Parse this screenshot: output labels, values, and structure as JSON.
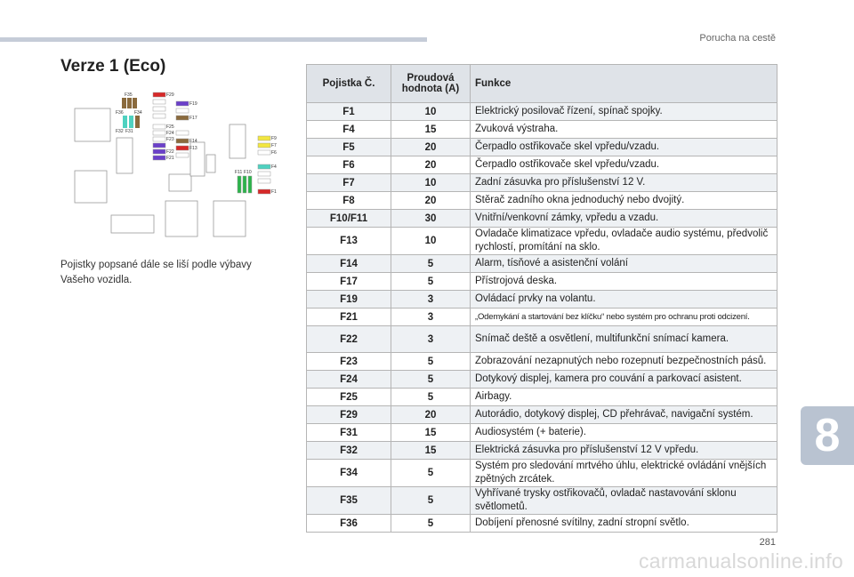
{
  "header": {
    "chapter_title": "Porucha na cestě"
  },
  "section_title": "Verze 1 (Eco)",
  "intro_text": "Pojistky popsané dále se liší podle výbavy Vašeho vozidla.",
  "diagram": {
    "labels": [
      "F35",
      "F36",
      "F34",
      "F32",
      "F31",
      "F29",
      "F19",
      "F17",
      "F25",
      "F24",
      "F23",
      "F22",
      "F21",
      "F14",
      "F13",
      "F9",
      "F7",
      "F6",
      "F4",
      "F1",
      "F11",
      "F10"
    ]
  },
  "table": {
    "headers": [
      "Pojistka Č.",
      "Proudová hodnota (A)",
      "Funkce"
    ],
    "rows": [
      {
        "fuse": "F1",
        "amp": "10",
        "func": "Elektrický posilovač řízení, spínač spojky."
      },
      {
        "fuse": "F4",
        "amp": "15",
        "func": "Zvuková výstraha."
      },
      {
        "fuse": "F5",
        "amp": "20",
        "func": "Čerpadlo ostřikovače skel vpředu/vzadu."
      },
      {
        "fuse": "F6",
        "amp": "20",
        "func": "Čerpadlo ostřikovače skel vpředu/vzadu."
      },
      {
        "fuse": "F7",
        "amp": "10",
        "func": "Zadní zásuvka pro příslušenství 12 V."
      },
      {
        "fuse": "F8",
        "amp": "20",
        "func": "Stěrač zadního okna jednoduchý nebo dvojitý."
      },
      {
        "fuse": "F10/F11",
        "amp": "30",
        "func": "Vnitřní/venkovní zámky, vpředu a vzadu."
      },
      {
        "fuse": "F13",
        "amp": "10",
        "func": "Ovladače klimatizace vpředu, ovladače audio systému, předvolič rychlostí, promítání na sklo."
      },
      {
        "fuse": "F14",
        "amp": "5",
        "func": "Alarm, tísňové a asistenční volání"
      },
      {
        "fuse": "F17",
        "amp": "5",
        "func": "Přístrojová deska."
      },
      {
        "fuse": "F19",
        "amp": "3",
        "func": "Ovládací prvky na volantu."
      },
      {
        "fuse": "F21",
        "amp": "3",
        "func": "„Odemykání a startování bez klíčku“ nebo systém pro ochranu proti odcizení."
      },
      {
        "fuse": "F22",
        "amp": "3",
        "func": "Snímač deště a osvětlení, multifunkční snímací kamera."
      },
      {
        "fuse": "F23",
        "amp": "5",
        "func": "Zobrazování nezapnutých nebo rozepnutí bezpečnostních pásů."
      },
      {
        "fuse": "F24",
        "amp": "5",
        "func": "Dotykový displej, kamera pro couvání a parkovací asistent."
      },
      {
        "fuse": "F25",
        "amp": "5",
        "func": "Airbagy."
      },
      {
        "fuse": "F29",
        "amp": "20",
        "func": "Autorádio, dotykový displej, CD přehrávač, navigační systém."
      },
      {
        "fuse": "F31",
        "amp": "15",
        "func": "Audiosystém (+ baterie)."
      },
      {
        "fuse": "F32",
        "amp": "15",
        "func": "Elektrická zásuvka pro příslušenství 12 V vpředu."
      },
      {
        "fuse": "F34",
        "amp": "5",
        "func": "Systém pro sledování mrtvého úhlu, elektrické ovládání vnějších zpětných zrcátek."
      },
      {
        "fuse": "F35",
        "amp": "5",
        "func": "Vyhřívané trysky ostřikovačů, ovladač nastavování sklonu světlometů."
      },
      {
        "fuse": "F36",
        "amp": "5",
        "func": "Dobíjení přenosné svítilny, zadní stropní světlo."
      }
    ]
  },
  "chapter_number": "8",
  "page_number": "281",
  "watermark": "carmanualsonline.info",
  "colors": {
    "fuse_red": "#d62828",
    "fuse_violet": "#6a3fc9",
    "fuse_brown": "#8a6a3d",
    "fuse_teal": "#4fd1c0",
    "fuse_yellow": "#f2e640",
    "fuse_green": "#2bb34a"
  }
}
